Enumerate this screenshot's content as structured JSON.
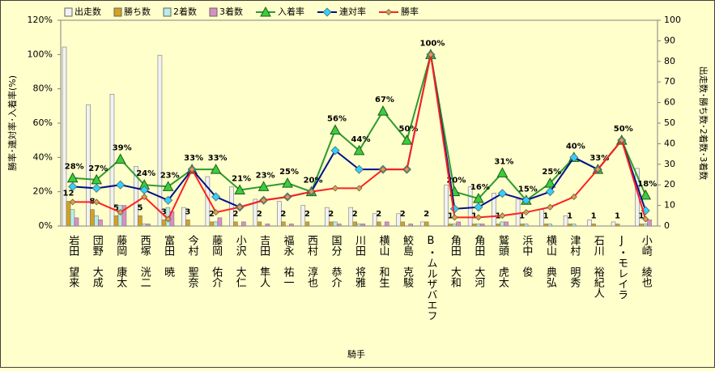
{
  "chart_data": {
    "type": "combo",
    "xlabel": "騎手",
    "ylabel": "勝率･連対率･入着率(%)",
    "y2label": "出走数･勝ち数･2着数･3着数",
    "categories": [
      "岩田　望来",
      "団野　大成",
      "藤岡　康太",
      "西塚　洸二",
      "富田　暁",
      "今村　聖奈",
      "藤岡　佑介",
      "小沢　大仁",
      "吉田　隼人",
      "福永　祐一",
      "西村　淳也",
      "国分　恭介",
      "川田　将雅",
      "横山　和生",
      "鮫島　克駿",
      "B・ムルザバエフ",
      "角田　大和",
      "角田　大河",
      "鷲頭　虎太",
      "浜中　俊",
      "横山　典弘",
      "津村　明秀",
      "石川　裕紀人",
      "J・モレイラ",
      "小崎　綾也"
    ],
    "ylim": [
      0,
      120
    ],
    "yticks": [
      {
        "value": 0,
        "label": "0%"
      },
      {
        "value": 20,
        "label": "20%"
      },
      {
        "value": 40,
        "label": "40%"
      },
      {
        "value": 60,
        "label": "60%"
      },
      {
        "value": 80,
        "label": "80%"
      },
      {
        "value": 100,
        "label": "100%"
      },
      {
        "value": 120,
        "label": "120%"
      }
    ],
    "y2lim": [
      0,
      100
    ],
    "y2ticks": [
      0,
      10,
      20,
      30,
      40,
      50,
      60,
      70,
      80,
      90,
      100
    ],
    "grid": false,
    "series": [
      {
        "name": "出走数",
        "type": "bar",
        "axis": "y2",
        "color": "#f2f2f2",
        "values": [
          87,
          59,
          64,
          29,
          83,
          9,
          24,
          19,
          13,
          12,
          10,
          9,
          9,
          6,
          6,
          2,
          20,
          19,
          16,
          13,
          8,
          5,
          3,
          2,
          28
        ]
      },
      {
        "name": "勝ち数",
        "type": "bar",
        "axis": "y2",
        "color": "#d4a21c",
        "labels": true,
        "values": [
          12,
          8,
          5,
          5,
          3,
          3,
          2,
          2,
          2,
          2,
          2,
          2,
          2,
          2,
          2,
          2,
          1,
          1,
          1,
          1,
          1,
          1,
          1,
          1,
          1
        ]
      },
      {
        "name": "2着数",
        "type": "bar",
        "axis": "y2",
        "color": "#b8ece4",
        "values": [
          8,
          5,
          10,
          1,
          9,
          0,
          2,
          0,
          0,
          0,
          0,
          2,
          1,
          0,
          0,
          0,
          1,
          1,
          2,
          1,
          1,
          1,
          0,
          0,
          1
        ]
      },
      {
        "name": "3着数",
        "type": "bar",
        "axis": "y2",
        "color": "#d890c4",
        "values": [
          4,
          3,
          10,
          1,
          7,
          0,
          4,
          2,
          1,
          1,
          0,
          1,
          1,
          2,
          1,
          0,
          2,
          1,
          2,
          0,
          0,
          0,
          0,
          0,
          3
        ]
      },
      {
        "name": "入着率",
        "type": "line",
        "axis": "y",
        "color": "#2e9a2e",
        "marker": "triangle",
        "marker_color": "#3ccc3c",
        "values": [
          28,
          27,
          39,
          24,
          23,
          33,
          33,
          21,
          23,
          25,
          20,
          56,
          44,
          67,
          50,
          100,
          20,
          16,
          31,
          15,
          25,
          40,
          33,
          50,
          18
        ],
        "value_labels": [
          "28%",
          "27%",
          "39%",
          "24%",
          "23%",
          "33%",
          "33%",
          "21%",
          "23%",
          "25%",
          "20%",
          "56%",
          "44%",
          "67%",
          "50%",
          "100%",
          "20%",
          "16%",
          "31%",
          "15%",
          "25%",
          "40%",
          "33%",
          "50%",
          "18%"
        ]
      },
      {
        "name": "連対率",
        "type": "line",
        "axis": "y",
        "color": "#00108c",
        "marker": "diamond",
        "marker_color": "#30d0ff",
        "values": [
          23,
          22,
          24,
          21,
          15,
          33,
          17,
          11,
          15,
          17,
          20,
          44,
          33,
          33,
          33,
          100,
          10,
          11,
          19,
          15,
          20,
          40,
          33,
          50,
          9
        ]
      },
      {
        "name": "勝率",
        "type": "line",
        "axis": "y",
        "color": "#ff2020",
        "marker": "small-diamond",
        "marker_color": "#e0a040",
        "values": [
          14,
          14,
          8,
          17,
          4,
          33,
          8,
          11,
          15,
          17,
          20,
          22,
          22,
          33,
          33,
          100,
          5,
          5,
          6,
          8,
          11,
          17,
          33,
          50,
          4
        ]
      }
    ]
  }
}
